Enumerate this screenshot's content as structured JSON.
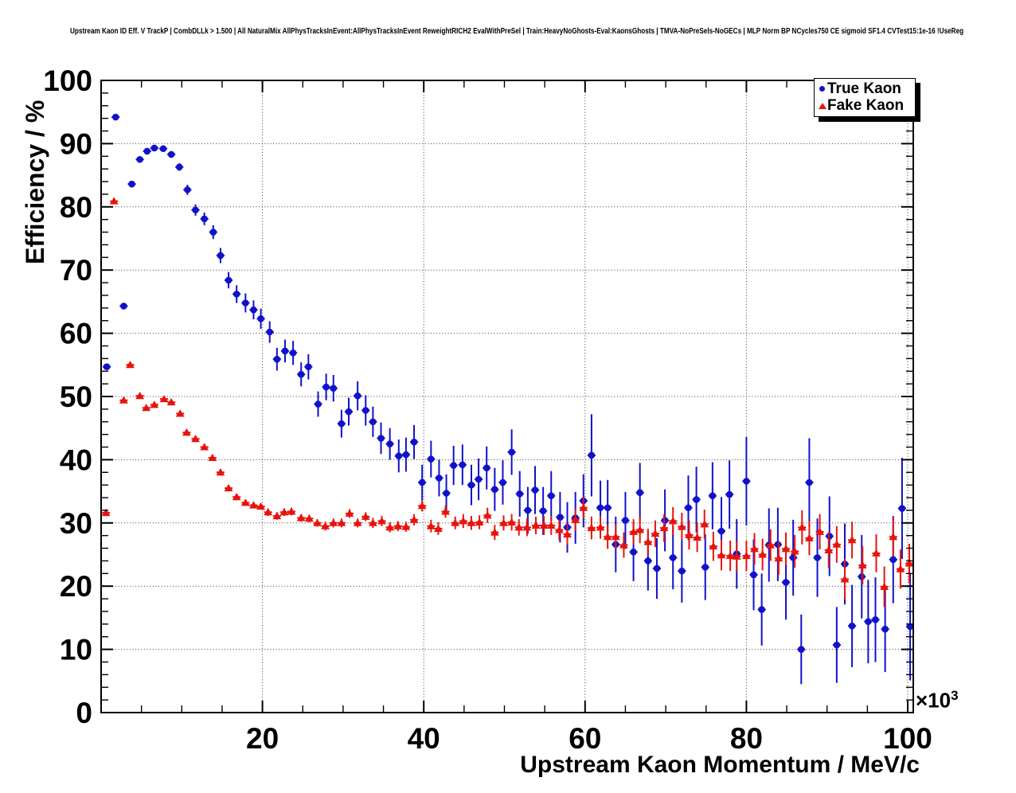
{
  "title": "Upstream Kaon ID Eff. V TrackP | CombDLLk > 1.500 | All NaturalMix AllPhysTracksInEvent:AllPhysTracksInEvent ReweightRICH2 EvalWithPreSel | Train:HeavyNoGhosts-Eval:KaonsGhosts | TMVA-NoPreSels-NoGECs | MLP Norm BP NCycles750 CE sigmoid SF1.4 CVTest15:1e-16 !UseReg",
  "chart_data": {
    "type": "scatter",
    "title": "Upstream Kaon ID Eff. V TrackP | CombDLLk > 1.500 | All NaturalMix AllPhysTracksInEvent:AllPhysTracksInEvent ReweightRICH2 EvalWithPreSel | Train:HeavyNoGhosts-Eval:KaonsGhosts | TMVA-NoPreSels-NoGECs | MLP Norm BP NCycles750 CE sigmoid SF1.4 CVTest15:1e-16 !UseReg",
    "xlabel": "Upstream Kaon Momentum / MeV/c",
    "ylabel": "Efficiency / %",
    "x_axis": {
      "min": 0,
      "max": 100.7,
      "major_ticks": [
        20,
        40,
        60,
        80,
        100
      ],
      "minor_step": 5,
      "exponent_base": "×10",
      "exponent_power": "3",
      "unit_scale": "values in 1000 MeV/c"
    },
    "y_axis": {
      "min": 0,
      "max": 100,
      "major_ticks": [
        0,
        10,
        20,
        30,
        40,
        50,
        60,
        70,
        80,
        90,
        100
      ],
      "minor_step": 2
    },
    "grid": {
      "style": "dotted",
      "h_lines": [
        10,
        20,
        30,
        40,
        50,
        60,
        70,
        80,
        90
      ],
      "v_lines": [
        20,
        40,
        60,
        80,
        100
      ]
    },
    "legend": {
      "position": "top-right",
      "entries": [
        {
          "label": "True Kaon",
          "marker": "circle",
          "color": "#1111cc"
        },
        {
          "label": "Fake Kaon",
          "marker": "triangle-up",
          "color": "#e8130c"
        }
      ]
    },
    "series": [
      {
        "name": "True Kaon",
        "marker": "circle",
        "color": "#1111cc",
        "xerr": 0.5,
        "points": [
          [
            0.7,
            54.7,
            0.5
          ],
          [
            1.8,
            94.2,
            0.5
          ],
          [
            2.8,
            64.3,
            0.5
          ],
          [
            3.8,
            83.6,
            0.5
          ],
          [
            4.8,
            87.5,
            0.5
          ],
          [
            5.7,
            88.8,
            0.5
          ],
          [
            6.6,
            89.3,
            0.5
          ],
          [
            7.7,
            89.2,
            0.5
          ],
          [
            8.7,
            88.3,
            0.5
          ],
          [
            9.7,
            86.3,
            0.6
          ],
          [
            10.7,
            82.7,
            0.8
          ],
          [
            11.7,
            79.5,
            0.9
          ],
          [
            12.8,
            78.1,
            1.0
          ],
          [
            13.9,
            76.0,
            1.1
          ],
          [
            14.8,
            72.3,
            1.2
          ],
          [
            15.8,
            68.4,
            1.3
          ],
          [
            16.8,
            66.2,
            1.4
          ],
          [
            17.9,
            64.8,
            1.5
          ],
          [
            18.9,
            63.7,
            1.5
          ],
          [
            19.8,
            62.3,
            1.6
          ],
          [
            20.9,
            60.2,
            1.7
          ],
          [
            21.8,
            55.9,
            1.8
          ],
          [
            22.8,
            57.2,
            1.8
          ],
          [
            23.8,
            56.9,
            1.9
          ],
          [
            24.8,
            53.5,
            1.9
          ],
          [
            25.7,
            54.7,
            2.0
          ],
          [
            26.9,
            48.8,
            2.0
          ],
          [
            27.9,
            51.5,
            2.1
          ],
          [
            28.8,
            51.3,
            2.1
          ],
          [
            29.8,
            45.7,
            2.2
          ],
          [
            30.7,
            47.6,
            2.2
          ],
          [
            31.8,
            50.1,
            2.3
          ],
          [
            32.8,
            47.8,
            2.4
          ],
          [
            33.7,
            46.0,
            2.4
          ],
          [
            34.7,
            43.4,
            2.5
          ],
          [
            35.8,
            42.5,
            2.5
          ],
          [
            36.9,
            40.6,
            2.6
          ],
          [
            37.8,
            40.8,
            2.7
          ],
          [
            38.8,
            42.8,
            2.7
          ],
          [
            39.8,
            36.4,
            2.8
          ],
          [
            40.9,
            40.1,
            2.9
          ],
          [
            41.9,
            37.1,
            2.9
          ],
          [
            42.8,
            34.7,
            3.0
          ],
          [
            43.7,
            39.1,
            3.1
          ],
          [
            44.8,
            39.2,
            3.2
          ],
          [
            45.9,
            36.0,
            3.2
          ],
          [
            46.8,
            36.9,
            3.3
          ],
          [
            47.8,
            38.7,
            3.4
          ],
          [
            48.8,
            35.3,
            3.4
          ],
          [
            49.8,
            36.4,
            3.5
          ],
          [
            50.9,
            41.2,
            3.6
          ],
          [
            51.9,
            34.6,
            3.6
          ],
          [
            52.9,
            32.0,
            3.7
          ],
          [
            53.8,
            35.2,
            3.8
          ],
          [
            54.8,
            31.9,
            3.8
          ],
          [
            55.8,
            34.3,
            3.9
          ],
          [
            56.9,
            30.9,
            4.0
          ],
          [
            57.8,
            29.3,
            4.0
          ],
          [
            58.8,
            30.8,
            4.1
          ],
          [
            59.8,
            33.5,
            4.2
          ],
          [
            60.8,
            40.7,
            6.5
          ],
          [
            61.9,
            32.4,
            4.3
          ],
          [
            62.8,
            32.4,
            4.4
          ],
          [
            63.8,
            26.6,
            4.4
          ],
          [
            65.0,
            30.4,
            4.5
          ],
          [
            66.0,
            25.4,
            4.6
          ],
          [
            66.8,
            34.8,
            4.7
          ],
          [
            67.8,
            24.0,
            4.7
          ],
          [
            68.9,
            22.8,
            4.8
          ],
          [
            69.9,
            30.4,
            4.9
          ],
          [
            70.9,
            24.5,
            5.0
          ],
          [
            72.0,
            22.4,
            5.0
          ],
          [
            72.8,
            32.4,
            5.1
          ],
          [
            73.8,
            33.7,
            5.2
          ],
          [
            74.9,
            23.0,
            5.2
          ],
          [
            75.8,
            34.3,
            5.3
          ],
          [
            76.9,
            28.7,
            5.4
          ],
          [
            77.9,
            34.5,
            5.4
          ],
          [
            78.8,
            25.1,
            5.5
          ],
          [
            80.0,
            36.6,
            7.0
          ],
          [
            80.9,
            21.8,
            5.6
          ],
          [
            81.9,
            16.3,
            5.7
          ],
          [
            82.8,
            26.5,
            5.8
          ],
          [
            83.9,
            26.6,
            5.8
          ],
          [
            84.9,
            20.6,
            5.9
          ],
          [
            85.8,
            24.5,
            6.0
          ],
          [
            86.8,
            10.0,
            5.5
          ],
          [
            87.8,
            36.4,
            7.0
          ],
          [
            88.8,
            24.5,
            6.2
          ],
          [
            90.3,
            27.9,
            6.3
          ],
          [
            91.2,
            10.7,
            6.0
          ],
          [
            92.2,
            23.5,
            6.4
          ],
          [
            93.1,
            13.7,
            6.5
          ],
          [
            94.3,
            21.5,
            6.6
          ],
          [
            95.1,
            14.4,
            6.6
          ],
          [
            96.0,
            14.7,
            6.7
          ],
          [
            97.2,
            13.2,
            6.8
          ],
          [
            98.2,
            24.2,
            6.9
          ],
          [
            99.3,
            32.3,
            8.0
          ],
          [
            100.3,
            13.6,
            8.5
          ]
        ]
      },
      {
        "name": "Fake Kaon",
        "marker": "triangle-up",
        "color": "#e8130c",
        "xerr": 0.5,
        "points": [
          [
            0.6,
            31.6,
            0.5
          ],
          [
            1.6,
            80.9,
            0.5
          ],
          [
            2.8,
            49.4,
            0.4
          ],
          [
            3.6,
            55.0,
            0.4
          ],
          [
            4.8,
            50.1,
            0.4
          ],
          [
            5.6,
            48.2,
            0.4
          ],
          [
            6.6,
            48.7,
            0.4
          ],
          [
            7.8,
            49.6,
            0.4
          ],
          [
            8.7,
            49.1,
            0.4
          ],
          [
            9.8,
            47.3,
            0.4
          ],
          [
            10.6,
            44.3,
            0.5
          ],
          [
            11.7,
            43.3,
            0.5
          ],
          [
            12.8,
            42.0,
            0.5
          ],
          [
            13.8,
            40.3,
            0.5
          ],
          [
            14.8,
            38.0,
            0.5
          ],
          [
            15.8,
            35.5,
            0.5
          ],
          [
            16.8,
            34.1,
            0.5
          ],
          [
            17.9,
            33.2,
            0.5
          ],
          [
            18.9,
            32.8,
            0.5
          ],
          [
            19.8,
            32.6,
            0.5
          ],
          [
            20.7,
            31.7,
            0.6
          ],
          [
            21.8,
            31.1,
            0.6
          ],
          [
            22.7,
            31.7,
            0.6
          ],
          [
            23.6,
            31.8,
            0.6
          ],
          [
            24.8,
            30.8,
            0.6
          ],
          [
            25.8,
            30.7,
            0.6
          ],
          [
            26.8,
            30.0,
            0.6
          ],
          [
            27.8,
            29.5,
            0.7
          ],
          [
            28.8,
            30.0,
            0.7
          ],
          [
            29.8,
            30.0,
            0.7
          ],
          [
            30.8,
            31.5,
            0.7
          ],
          [
            31.8,
            30.0,
            0.7
          ],
          [
            32.8,
            31.0,
            0.7
          ],
          [
            33.7,
            30.0,
            0.8
          ],
          [
            34.8,
            30.3,
            0.8
          ],
          [
            35.8,
            29.3,
            0.8
          ],
          [
            36.8,
            29.5,
            0.8
          ],
          [
            37.8,
            29.4,
            0.8
          ],
          [
            38.8,
            30.5,
            0.9
          ],
          [
            39.8,
            32.7,
            0.9
          ],
          [
            40.9,
            29.5,
            1.0
          ],
          [
            41.8,
            29.1,
            1.0
          ],
          [
            42.7,
            31.8,
            1.0
          ],
          [
            43.9,
            30.0,
            1.0
          ],
          [
            44.9,
            30.3,
            1.1
          ],
          [
            45.9,
            30.0,
            1.1
          ],
          [
            46.9,
            30.1,
            1.1
          ],
          [
            47.9,
            31.2,
            1.2
          ],
          [
            48.8,
            28.5,
            1.2
          ],
          [
            49.9,
            30.0,
            1.2
          ],
          [
            50.9,
            30.1,
            1.3
          ],
          [
            51.8,
            29.3,
            1.3
          ],
          [
            52.8,
            29.3,
            1.4
          ],
          [
            53.9,
            29.6,
            1.4
          ],
          [
            54.9,
            29.6,
            1.5
          ],
          [
            55.8,
            29.6,
            1.5
          ],
          [
            56.8,
            28.9,
            1.6
          ],
          [
            57.8,
            28.2,
            1.6
          ],
          [
            58.8,
            30.5,
            1.7
          ],
          [
            59.8,
            32.4,
            1.7
          ],
          [
            60.8,
            29.2,
            1.8
          ],
          [
            61.9,
            29.3,
            1.8
          ],
          [
            62.8,
            27.8,
            1.9
          ],
          [
            63.8,
            27.8,
            1.9
          ],
          [
            64.8,
            26.5,
            2.0
          ],
          [
            66.0,
            28.6,
            2.0
          ],
          [
            66.8,
            28.9,
            2.1
          ],
          [
            67.8,
            27.0,
            2.1
          ],
          [
            68.7,
            28.3,
            2.1
          ],
          [
            69.8,
            29.2,
            2.2
          ],
          [
            70.9,
            30.3,
            2.2
          ],
          [
            72.0,
            29.4,
            2.2
          ],
          [
            72.9,
            28.1,
            2.3
          ],
          [
            73.9,
            27.7,
            2.3
          ],
          [
            74.8,
            29.8,
            2.3
          ],
          [
            75.9,
            26.3,
            2.3
          ],
          [
            76.9,
            24.9,
            2.4
          ],
          [
            78.0,
            24.8,
            2.4
          ],
          [
            78.8,
            24.7,
            2.4
          ],
          [
            80.0,
            24.8,
            2.4
          ],
          [
            81.0,
            25.9,
            2.5
          ],
          [
            82.0,
            25.0,
            2.5
          ],
          [
            83.0,
            26.5,
            2.5
          ],
          [
            84.0,
            24.4,
            2.6
          ],
          [
            84.9,
            25.9,
            2.6
          ],
          [
            86.0,
            25.5,
            2.6
          ],
          [
            86.9,
            29.3,
            2.7
          ],
          [
            87.8,
            27.6,
            2.7
          ],
          [
            89.1,
            28.6,
            2.8
          ],
          [
            90.2,
            25.7,
            2.8
          ],
          [
            91.2,
            26.6,
            2.9
          ],
          [
            92.2,
            21.1,
            3.2
          ],
          [
            93.1,
            27.3,
            2.9
          ],
          [
            94.4,
            23.3,
            3.0
          ],
          [
            96.1,
            25.2,
            3.0
          ],
          [
            97.1,
            19.9,
            3.2
          ],
          [
            98.2,
            27.8,
            3.0
          ],
          [
            99.1,
            22.7,
            3.1
          ],
          [
            100.2,
            23.6,
            3.1
          ]
        ]
      }
    ]
  }
}
